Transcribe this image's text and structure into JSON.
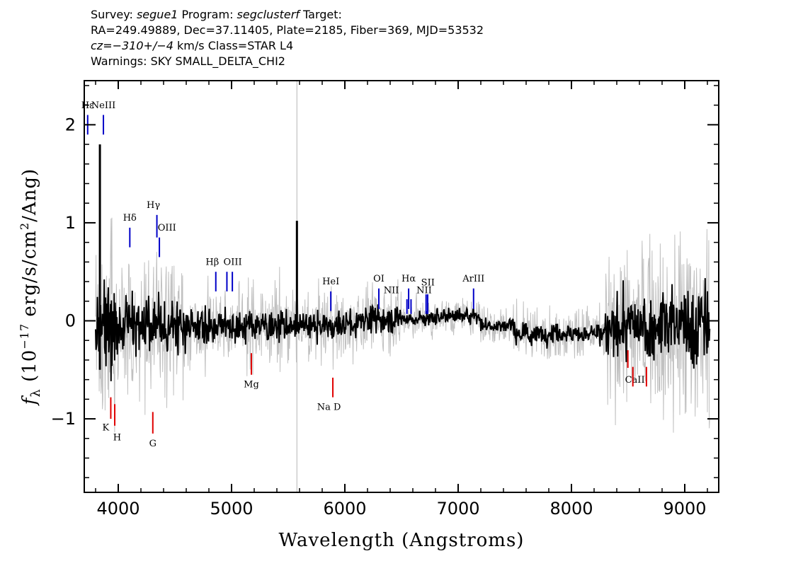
{
  "header": {
    "survey_prefix": "Survey: ",
    "survey": "segue1",
    "program_prefix": " Program: ",
    "program": "segclusterf",
    "target_suffix": " Target:",
    "line2": "RA=249.49889, Dec=37.11405, Plate=2185, Fiber=369, MJD=53532",
    "cz_value": "cz=−310+/−4",
    "cz_suffix": " km/s Class=STAR L4",
    "warnings": "Warnings: SKY SMALL_DELTA_CHI2"
  },
  "chart_data": {
    "type": "line",
    "xlabel": "Wavelength (Angstroms)",
    "ylabel_symbol": "f",
    "ylabel_sub": "λ",
    "ylabel_mid": " (10",
    "ylabel_exp": "−17",
    "ylabel_units": " erg/s/cm",
    "ylabel_sq": "2",
    "ylabel_end": "/Ang)",
    "xlim": [
      3700,
      9300
    ],
    "ylim": [
      -1.75,
      2.45
    ],
    "x_ticks": [
      4000,
      5000,
      6000,
      7000,
      8000,
      9000
    ],
    "x_tick_labels": [
      "4000",
      "5000",
      "6000",
      "7000",
      "8000",
      "9000"
    ],
    "y_ticks": [
      -1,
      0,
      1,
      2
    ],
    "y_tick_labels": [
      "−1",
      "0",
      "1",
      "2"
    ],
    "series": [
      {
        "color": "#000000"
      },
      {
        "color": "#c0c0c0"
      }
    ],
    "emission_color": "#0000c8",
    "absorption_color": "#e00000",
    "emission_lines": [
      {
        "label": "Hε",
        "x": 3730,
        "y1": 1.9,
        "y2": 2.1,
        "lx": 3730,
        "ly": 2.17
      },
      {
        "label": "NeIII",
        "x": 3869,
        "y1": 1.9,
        "y2": 2.1,
        "lx": 3869,
        "ly": 2.17
      },
      {
        "label": "Hδ",
        "x": 4102,
        "y1": 0.75,
        "y2": 0.95,
        "lx": 4102,
        "ly": 1.02
      },
      {
        "label": "Hγ",
        "x": 4341,
        "y1": 0.85,
        "y2": 1.08,
        "lx": 4310,
        "ly": 1.15
      },
      {
        "label": "OIII",
        "x": 4363,
        "y1": 0.65,
        "y2": 0.85,
        "lx": 4430,
        "ly": 0.92
      },
      {
        "label": "Hβ",
        "x": 4861,
        "y1": 0.3,
        "y2": 0.5,
        "lx": 4830,
        "ly": 0.57
      },
      {
        "label": "OIII",
        "x": 4959,
        "y1": 0.3,
        "y2": 0.5,
        "lx": 5010,
        "ly": 0.57
      },
      {
        "label": "",
        "x": 5007,
        "y1": 0.3,
        "y2": 0.5,
        "lx": 5007,
        "ly": 0.57
      },
      {
        "label": "HeI",
        "x": 5876,
        "y1": 0.1,
        "y2": 0.3,
        "lx": 5876,
        "ly": 0.37
      },
      {
        "label": "OI",
        "x": 6300,
        "y1": 0.12,
        "y2": 0.33,
        "lx": 6300,
        "ly": 0.4
      },
      {
        "label": "NII",
        "x": 6548,
        "y1": 0.07,
        "y2": 0.22,
        "lx": 6410,
        "ly": 0.28
      },
      {
        "label": "Hα",
        "x": 6563,
        "y1": 0.12,
        "y2": 0.33,
        "lx": 6563,
        "ly": 0.4
      },
      {
        "label": "NII",
        "x": 6584,
        "y1": 0.07,
        "y2": 0.22,
        "lx": 6700,
        "ly": 0.28
      },
      {
        "label": "SII",
        "x": 6717,
        "y1": 0.07,
        "y2": 0.27,
        "lx": 6733,
        "ly": 0.36
      },
      {
        "label": "",
        "x": 6731,
        "y1": 0.07,
        "y2": 0.27,
        "lx": 6731,
        "ly": 0.36
      },
      {
        "label": "ArIII",
        "x": 7136,
        "y1": 0.12,
        "y2": 0.33,
        "lx": 7136,
        "ly": 0.4
      }
    ],
    "absorption_lines": [
      {
        "label": "K",
        "x": 3934,
        "y1": -0.78,
        "y2": -1.0,
        "lx": 3890,
        "ly": -1.12
      },
      {
        "label": "H",
        "x": 3969,
        "y1": -0.85,
        "y2": -1.07,
        "lx": 3990,
        "ly": -1.22
      },
      {
        "label": "G",
        "x": 4305,
        "y1": -0.93,
        "y2": -1.15,
        "lx": 4305,
        "ly": -1.28
      },
      {
        "label": "Mg",
        "x": 5175,
        "y1": -0.33,
        "y2": -0.55,
        "lx": 5175,
        "ly": -0.68
      },
      {
        "label": "Na D",
        "x": 5894,
        "y1": -0.58,
        "y2": -0.78,
        "lx": 5860,
        "ly": -0.91
      },
      {
        "label": "CaII",
        "x": 8498,
        "y1": -0.3,
        "y2": -0.48,
        "lx": 8560,
        "ly": -0.63
      },
      {
        "label": "",
        "x": 8542,
        "y1": -0.47,
        "y2": -0.67,
        "lx": 8542,
        "ly": -0.67
      },
      {
        "label": "",
        "x": 8662,
        "y1": -0.47,
        "y2": -0.67,
        "lx": 8662,
        "ly": -0.67
      }
    ]
  }
}
